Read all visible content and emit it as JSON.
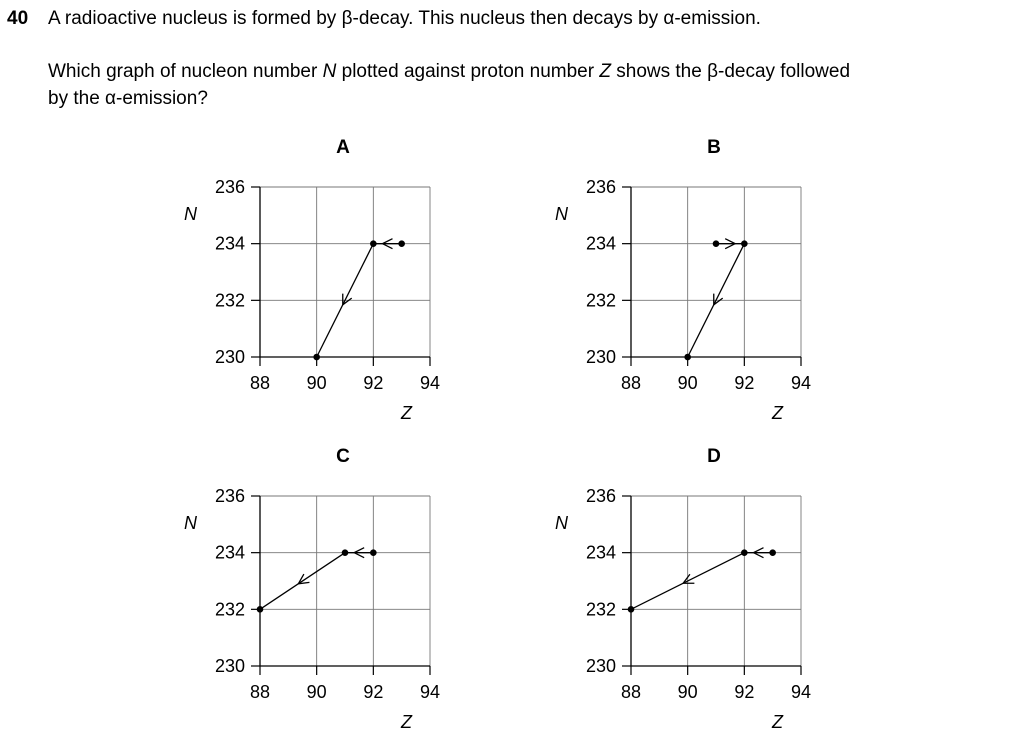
{
  "question": {
    "number": "40",
    "line1": "A radioactive nucleus is formed by β-decay. This nucleus then decays by α-emission.",
    "line2_a": "Which graph of nucleon number ",
    "line2_N": "N",
    "line2_b": " plotted against proton number ",
    "line2_Z": "Z",
    "line2_c": " shows the β-decay followed",
    "line3": "by the α-emission?"
  },
  "chart_data": [
    {
      "type": "line",
      "option": "A",
      "xlabel": "Z",
      "ylabel": "N",
      "xlim": [
        88,
        94
      ],
      "ylim": [
        230,
        236
      ],
      "xticks": [
        88,
        90,
        92,
        94
      ],
      "yticks": [
        230,
        232,
        234,
        236
      ],
      "grid": true,
      "points": [
        {
          "x": 93,
          "y": 234
        },
        {
          "x": 92,
          "y": 234
        },
        {
          "x": 90,
          "y": 230
        }
      ]
    },
    {
      "type": "line",
      "option": "B",
      "xlabel": "Z",
      "ylabel": "N",
      "xlim": [
        88,
        94
      ],
      "ylim": [
        230,
        236
      ],
      "xticks": [
        88,
        90,
        92,
        94
      ],
      "yticks": [
        230,
        232,
        234,
        236
      ],
      "grid": true,
      "points": [
        {
          "x": 91,
          "y": 234
        },
        {
          "x": 92,
          "y": 234
        },
        {
          "x": 90,
          "y": 230
        }
      ]
    },
    {
      "type": "line",
      "option": "C",
      "xlabel": "Z",
      "ylabel": "N",
      "xlim": [
        88,
        94
      ],
      "ylim": [
        230,
        236
      ],
      "xticks": [
        88,
        90,
        92,
        94
      ],
      "yticks": [
        230,
        232,
        234,
        236
      ],
      "grid": true,
      "points": [
        {
          "x": 92,
          "y": 234
        },
        {
          "x": 91,
          "y": 234
        },
        {
          "x": 88,
          "y": 232
        }
      ]
    },
    {
      "type": "line",
      "option": "D",
      "xlabel": "Z",
      "ylabel": "N",
      "xlim": [
        88,
        94
      ],
      "ylim": [
        230,
        236
      ],
      "xticks": [
        88,
        90,
        92,
        94
      ],
      "yticks": [
        230,
        232,
        234,
        236
      ],
      "grid": true,
      "points": [
        {
          "x": 93,
          "y": 234
        },
        {
          "x": 92,
          "y": 234
        },
        {
          "x": 88,
          "y": 232
        }
      ]
    }
  ]
}
